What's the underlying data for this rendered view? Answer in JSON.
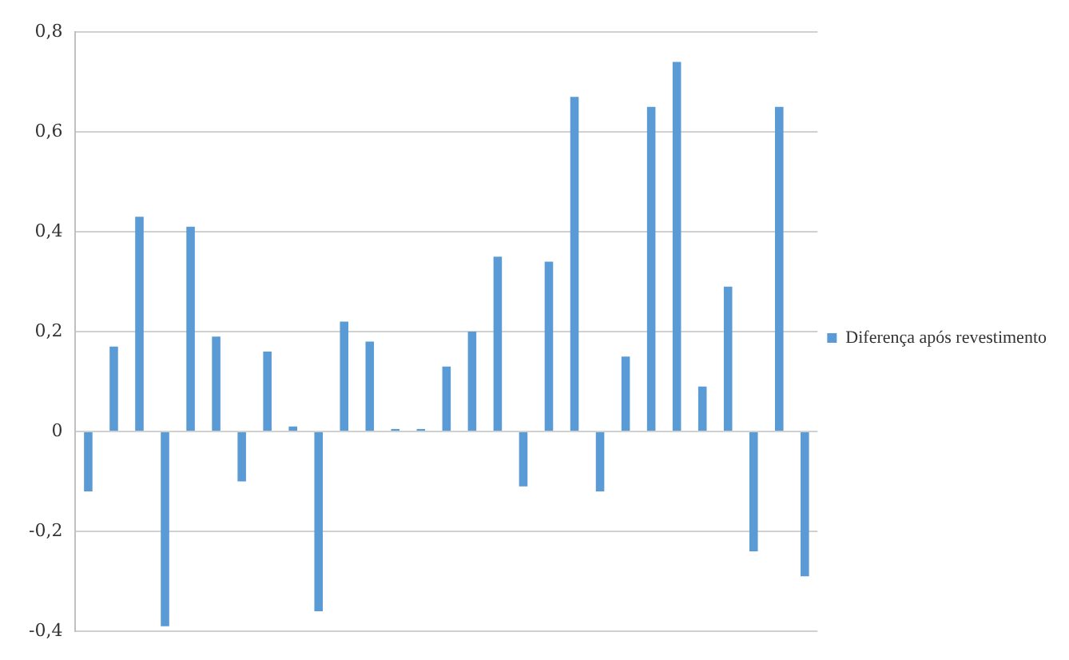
{
  "chart_data": {
    "type": "bar",
    "categories": [
      null,
      null,
      null,
      null,
      null,
      null,
      null,
      null,
      null,
      null,
      null,
      null,
      null,
      null,
      null,
      null,
      null,
      null,
      null,
      null,
      null,
      null,
      null,
      null,
      null,
      null,
      null,
      null,
      null
    ],
    "series": [
      {
        "name": "Diferença após revestimento",
        "color": "#5b9bd5",
        "values": [
          -0.12,
          0.17,
          0.43,
          -0.39,
          0.41,
          0.19,
          -0.1,
          0.16,
          0.01,
          -0.36,
          0.22,
          0.18,
          0.005,
          0.005,
          0.13,
          0.2,
          0.35,
          -0.11,
          0.34,
          0.67,
          -0.12,
          0.15,
          0.65,
          0.74,
          0.09,
          0.29,
          -0.24,
          0.65,
          -0.29
        ]
      }
    ],
    "ylim": [
      -0.4,
      0.8
    ],
    "yticks": [
      {
        "value": -0.4,
        "label": "-0,4"
      },
      {
        "value": -0.2,
        "label": "-0,2"
      },
      {
        "value": 0,
        "label": "0"
      },
      {
        "value": 0.2,
        "label": "0,2"
      },
      {
        "value": 0.4,
        "label": "0,4"
      },
      {
        "value": 0.6,
        "label": "0,6"
      },
      {
        "value": 0.8,
        "label": "0,8"
      }
    ],
    "grid": "y",
    "legend": "right"
  }
}
